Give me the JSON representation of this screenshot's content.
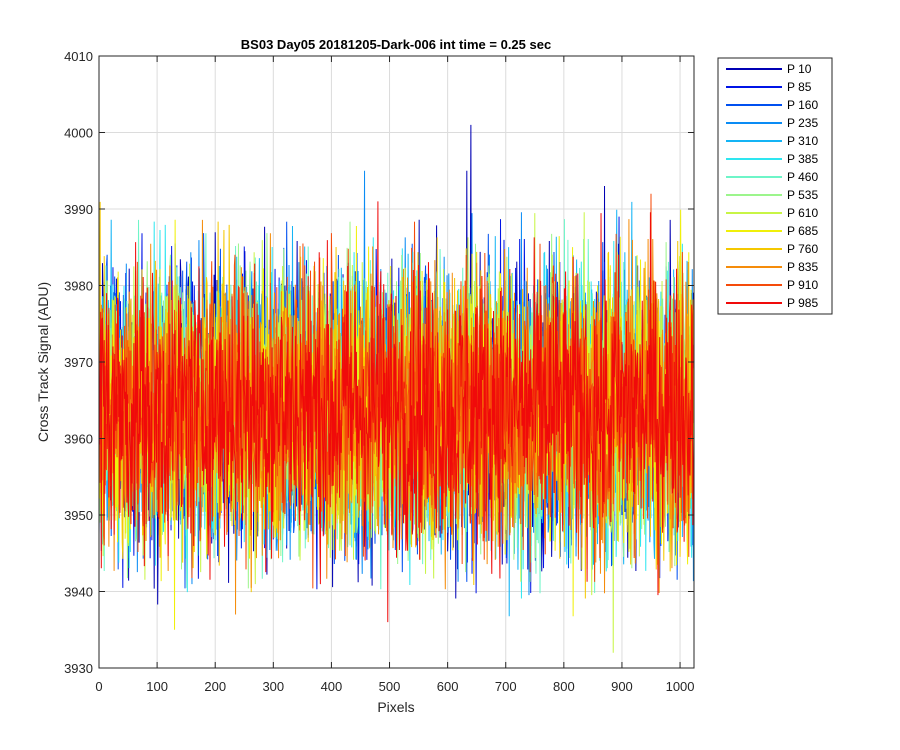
{
  "chart_data": {
    "type": "line",
    "title": "BS03 Day05 20181205-Dark-006 int time = 0.25 sec",
    "xlabel": "Pixels",
    "ylabel": "Cross Track Signal (ADU)",
    "xlim": [
      0,
      1024
    ],
    "ylim": [
      3930,
      4010
    ],
    "xticks": [
      0,
      100,
      200,
      300,
      400,
      500,
      600,
      700,
      800,
      900,
      1000
    ],
    "yticks": [
      3930,
      3940,
      3950,
      3960,
      3970,
      3980,
      3990,
      4000,
      4010
    ],
    "grid": true,
    "legend_position": "outside-top-right",
    "noise_center": 3964,
    "noise_sigma": 9,
    "series": [
      {
        "name": "P 10",
        "color": "#0000b4",
        "peaks": [
          {
            "x": 640,
            "y": 4001
          },
          {
            "x": 633,
            "y": 3995
          },
          {
            "x": 870,
            "y": 3993
          }
        ]
      },
      {
        "name": "P 85",
        "color": "#0014e6",
        "peaks": [
          {
            "x": 895,
            "y": 3989
          }
        ]
      },
      {
        "name": "P 160",
        "color": "#0050f0",
        "peaks": []
      },
      {
        "name": "P 235",
        "color": "#0a8cf5",
        "peaks": [
          {
            "x": 457,
            "y": 3995
          }
        ]
      },
      {
        "name": "P 310",
        "color": "#14b4f5",
        "peaks": []
      },
      {
        "name": "P 385",
        "color": "#2ee6f0",
        "peaks": []
      },
      {
        "name": "P 460",
        "color": "#6ef5c8",
        "peaks": []
      },
      {
        "name": "P 535",
        "color": "#9cf58c",
        "peaks": []
      },
      {
        "name": "P 610",
        "color": "#c8f546",
        "peaks": [
          {
            "x": 885,
            "y": 3932
          }
        ]
      },
      {
        "name": "P 685",
        "color": "#f0f00a",
        "peaks": [
          {
            "x": 130,
            "y": 3935
          }
        ]
      },
      {
        "name": "P 760",
        "color": "#f5c800",
        "peaks": []
      },
      {
        "name": "P 835",
        "color": "#f58c0a",
        "peaks": [
          {
            "x": 235,
            "y": 3937
          }
        ]
      },
      {
        "name": "P 910",
        "color": "#f54b0a",
        "peaks": [
          {
            "x": 950,
            "y": 3992
          }
        ]
      },
      {
        "name": "P 985",
        "color": "#f00a0a",
        "peaks": [
          {
            "x": 480,
            "y": 3991
          },
          {
            "x": 497,
            "y": 3936
          }
        ]
      }
    ]
  }
}
